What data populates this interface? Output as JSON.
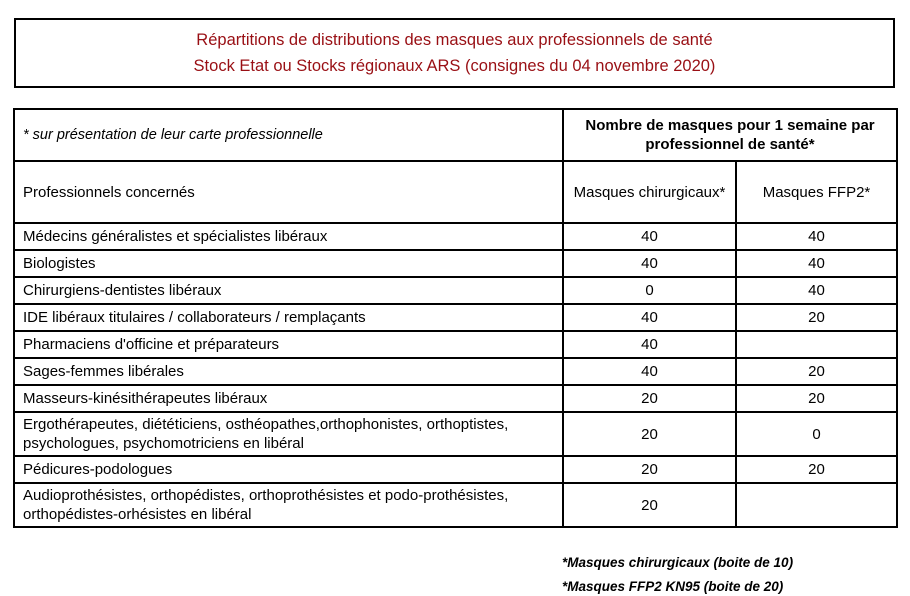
{
  "colors": {
    "title_text": "#990F14",
    "table_border": "#000000",
    "page_background": "#FFFFFF",
    "body_text": "#000000"
  },
  "title": {
    "line1": "Répartitions de distributions des masques aux professionnels de santé",
    "line2": "Stock Etat ou Stocks régionaux ARS (consignes du 04 novembre 2020)"
  },
  "table": {
    "note_left": "* sur présentation de leur carte professionnelle",
    "group_header": "Nombre de masques pour 1 semaine par professionnel de santé*",
    "columns": [
      "Professionnels concernés",
      "Masques chirurgicaux*",
      "Masques FFP2*"
    ],
    "rows": [
      {
        "label": "Médecins généralistes et spécialistes libéraux",
        "chirurgicaux": "40",
        "ffp2": "40"
      },
      {
        "label": "Biologistes",
        "chirurgicaux": "40",
        "ffp2": "40"
      },
      {
        "label": "Chirurgiens-dentistes libéraux",
        "chirurgicaux": "0",
        "ffp2": "40"
      },
      {
        "label": "IDE libéraux titulaires / collaborateurs / remplaçants",
        "chirurgicaux": "40",
        "ffp2": "20"
      },
      {
        "label": "Pharmaciens d'officine et préparateurs",
        "chirurgicaux": "40",
        "ffp2": ""
      },
      {
        "label": "Sages-femmes libérales",
        "chirurgicaux": "40",
        "ffp2": "20"
      },
      {
        "label": "Masseurs-kinésithérapeutes libéraux",
        "chirurgicaux": "20",
        "ffp2": "20"
      },
      {
        "label": "Ergothérapeutes, diététiciens, osthéopathes,orthophonistes, orthoptistes, psychologues, psychomotriciens en libéral",
        "chirurgicaux": "20",
        "ffp2": "0"
      },
      {
        "label": "Pédicures-podologues",
        "chirurgicaux": "20",
        "ffp2": "20"
      },
      {
        "label": "Audioprothésistes, orthopédistes, orthoprothésistes et podo-prothésistes, orthopédistes-orhésistes en libéral",
        "chirurgicaux": "20",
        "ffp2": ""
      }
    ]
  },
  "footnotes": [
    "*Masques chirurgicaux (boite de 10)",
    "*Masques FFP2 KN95 (boite de 20)"
  ]
}
